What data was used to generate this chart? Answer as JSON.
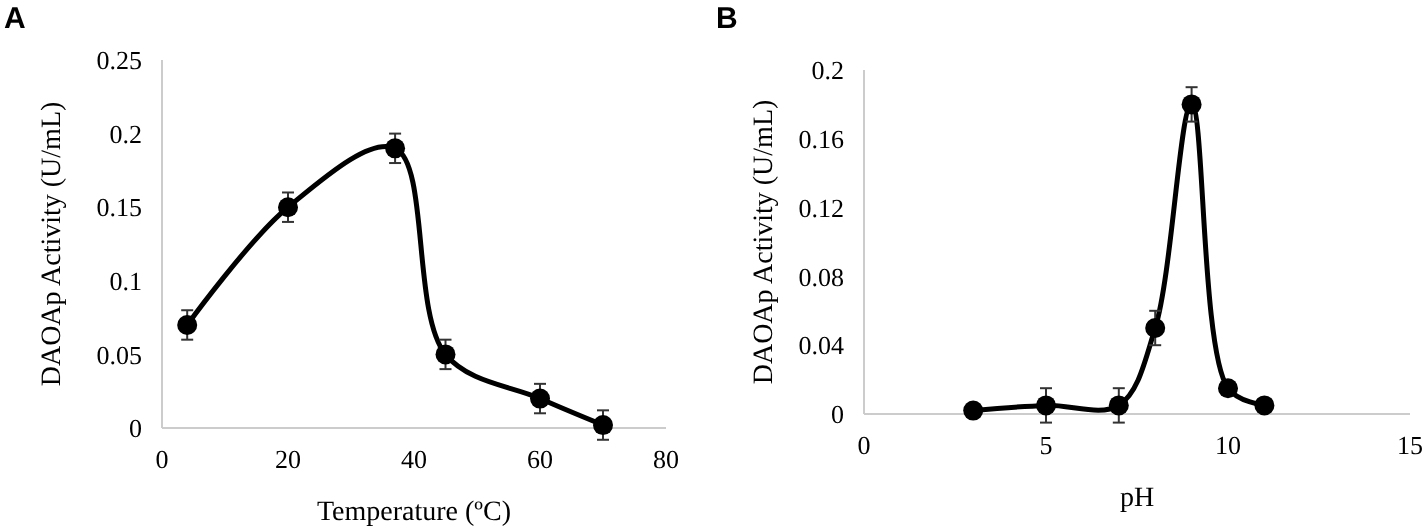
{
  "chart_data": [
    {
      "type": "line",
      "title": "A",
      "xlabel": "Temperature (ºC)",
      "ylabel": "DAOAp Activity (U/mL)",
      "x": [
        4,
        20,
        37,
        45,
        60,
        70
      ],
      "series": [
        {
          "color": "#000000",
          "values": [
            0.07,
            0.15,
            0.19,
            0.05,
            0.02,
            0.002
          ],
          "errors": [
            0.01,
            0.01,
            0.01,
            0.01,
            0.01,
            0.01
          ]
        }
      ],
      "xlim": [
        0,
        80
      ],
      "xticks": [
        0,
        20,
        40,
        60,
        80
      ],
      "ylim": [
        0,
        0.25
      ],
      "yticks": [
        0,
        0.05,
        0.1,
        0.15,
        0.2,
        0.25
      ],
      "marker": "circle",
      "line_style": "solid",
      "grid": false
    },
    {
      "type": "line",
      "title": "B",
      "xlabel": "pH",
      "ylabel": "DAOAp Activity (U/mL)",
      "x": [
        3,
        5,
        7,
        8,
        9,
        10,
        11
      ],
      "series": [
        {
          "color": "#000000",
          "values": [
            0.002,
            0.005,
            0.005,
            0.05,
            0.18,
            0.015,
            0.005
          ],
          "errors": [
            null,
            0.01,
            0.01,
            0.01,
            0.01,
            null,
            null
          ]
        }
      ],
      "xlim": [
        0,
        15
      ],
      "xticks": [
        0,
        5,
        10,
        15
      ],
      "ylim": [
        0,
        0.2
      ],
      "yticks": [
        0,
        0.04,
        0.08,
        0.12,
        0.16,
        0.2
      ],
      "marker": "circle",
      "line_style": "solid",
      "grid": false
    }
  ]
}
